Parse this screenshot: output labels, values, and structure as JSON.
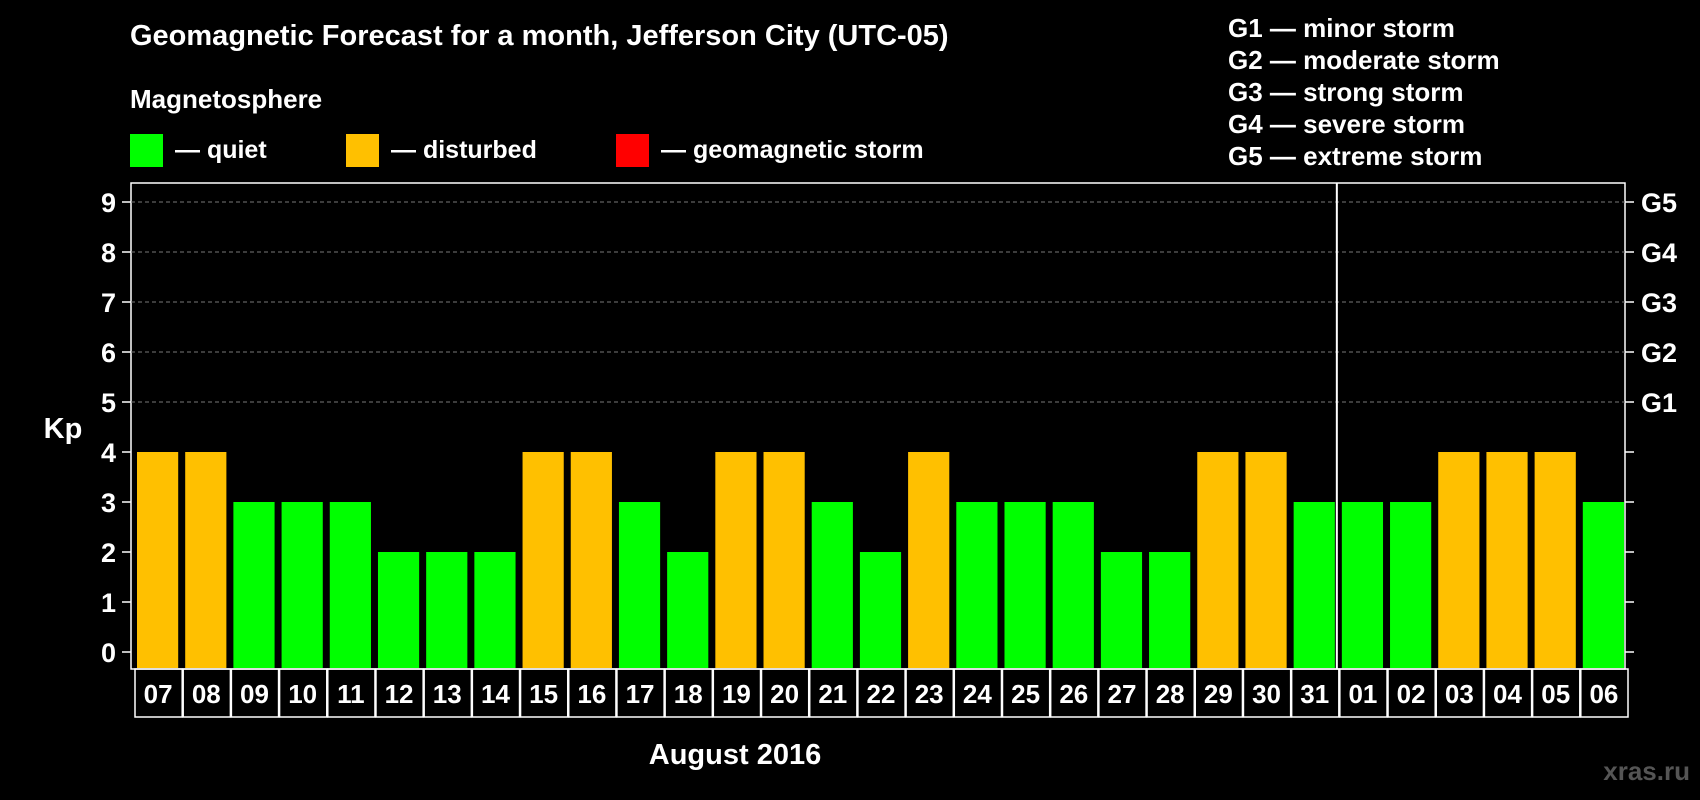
{
  "title": "Geomagnetic Forecast for a month, Jefferson City (UTC-05)",
  "legend": {
    "heading": "Magnetosphere",
    "items": [
      {
        "label": "— quiet",
        "color": "#00ff00"
      },
      {
        "label": "— disturbed",
        "color": "#ffc000"
      },
      {
        "label": "— geomagnetic storm",
        "color": "#ff0000"
      }
    ]
  },
  "storm_scale": [
    {
      "label": "G1 — minor storm"
    },
    {
      "label": "G2 — moderate storm"
    },
    {
      "label": "G3 — strong storm"
    },
    {
      "label": "G4 — severe storm"
    },
    {
      "label": "G5 — extreme storm"
    }
  ],
  "watermark": "xras.ru",
  "chart_data": {
    "type": "bar",
    "ylabel": "Kp",
    "xlabel": "August 2016",
    "ylim": [
      0,
      9
    ],
    "yticks": [
      "0",
      "1",
      "2",
      "3",
      "4",
      "5",
      "6",
      "7",
      "8",
      "9"
    ],
    "right_axis_labels": [
      {
        "kp": 5,
        "label": "G1"
      },
      {
        "kp": 6,
        "label": "G2"
      },
      {
        "kp": 7,
        "label": "G3"
      },
      {
        "kp": 8,
        "label": "G4"
      },
      {
        "kp": 9,
        "label": "G5"
      }
    ],
    "grid": true,
    "categories": [
      "07",
      "08",
      "09",
      "10",
      "11",
      "12",
      "13",
      "14",
      "15",
      "16",
      "17",
      "18",
      "19",
      "20",
      "21",
      "22",
      "23",
      "24",
      "25",
      "26",
      "27",
      "28",
      "29",
      "30",
      "31",
      "01",
      "02",
      "03",
      "04",
      "05",
      "06"
    ],
    "values": [
      4,
      4,
      3,
      3,
      3,
      2,
      2,
      2,
      4,
      4,
      3,
      2,
      4,
      4,
      3,
      2,
      4,
      3,
      3,
      3,
      2,
      2,
      4,
      4,
      3,
      3,
      3,
      4,
      4,
      4,
      3
    ],
    "month_boundary_after": "31"
  }
}
